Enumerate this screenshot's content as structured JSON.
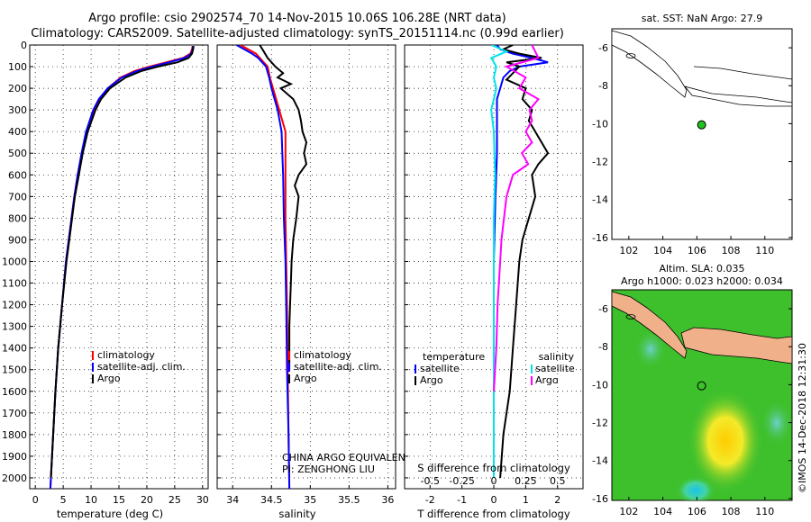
{
  "title_line1": "Argo profile: csio 2902574_70 14-Nov-2015 10.06S 106.28E (NRT data)",
  "title_line2": "Climatology: CARS2009. Satellite-adjusted climatology: synTS_20151114.nc (0.99d earlier)",
  "colors": {
    "climatology": "#ff0000",
    "satellite": "#0000ff",
    "argo": "#000000",
    "sat_salinity": "#00e5ee",
    "argo_salinity": "#ff00ff",
    "land": "#f0b08a"
  },
  "chart_data": [
    {
      "type": "line",
      "id": "temperature",
      "xlabel": "temperature (deg C)",
      "xlim": [
        -1,
        31
      ],
      "ylim": [
        0,
        2050
      ],
      "xticks": [
        0,
        5,
        10,
        15,
        20,
        25,
        30
      ],
      "yticks": [
        0,
        100,
        200,
        300,
        400,
        500,
        600,
        700,
        800,
        900,
        1000,
        1100,
        1200,
        1300,
        1400,
        1500,
        1600,
        1700,
        1800,
        1900,
        2000
      ],
      "legend": [
        "climatology",
        "satellite-adj. clim.",
        "Argo"
      ],
      "series": [
        {
          "name": "climatology",
          "depth": [
            5,
            20,
            40,
            60,
            80,
            100,
            120,
            150,
            200,
            250,
            300,
            400,
            500,
            600,
            700,
            800,
            1000,
            1200,
            1400,
            1600,
            1800,
            2000,
            2050
          ],
          "values": [
            28.2,
            28.1,
            27.8,
            26.5,
            23.5,
            20.5,
            17.8,
            15.3,
            13.0,
            11.5,
            10.5,
            9.2,
            8.4,
            7.6,
            7.0,
            6.5,
            5.5,
            4.8,
            4.1,
            3.6,
            3.2,
            2.8,
            2.7
          ]
        },
        {
          "name": "satellite-adj. clim.",
          "depth": [
            5,
            20,
            40,
            60,
            80,
            100,
            120,
            150,
            200,
            250,
            300,
            400,
            500,
            600,
            700,
            800,
            1000,
            1200,
            1400,
            1600,
            1800,
            2000,
            2050
          ],
          "values": [
            28.3,
            28.2,
            28.0,
            26.8,
            24.0,
            21.0,
            18.2,
            15.5,
            13.0,
            11.4,
            10.4,
            9.1,
            8.3,
            7.6,
            7.0,
            6.5,
            5.5,
            4.8,
            4.1,
            3.6,
            3.2,
            2.8,
            2.7
          ]
        },
        {
          "name": "Argo",
          "depth": [
            5,
            20,
            40,
            60,
            80,
            100,
            120,
            150,
            200,
            250,
            300,
            400,
            500,
            600,
            700,
            800,
            1000,
            1200,
            1400,
            1600,
            1800,
            2000
          ],
          "values": [
            28.4,
            28.3,
            28.1,
            27.5,
            25.5,
            22.0,
            19.0,
            16.2,
            13.4,
            11.8,
            10.8,
            9.4,
            8.5,
            7.8,
            7.1,
            6.6,
            5.6,
            4.8,
            4.1,
            3.6,
            3.2,
            2.8
          ]
        }
      ]
    },
    {
      "type": "line",
      "id": "salinity",
      "xlabel": "salinity",
      "xlim": [
        33.8,
        36.1
      ],
      "ylim": [
        0,
        2050
      ],
      "xticks": [
        34,
        34.5,
        35,
        35.5,
        36
      ],
      "legend": [
        "climatology",
        "satellite-adj. clim.",
        "Argo"
      ],
      "annotation": [
        "CHINA ARGO EQUIVALENT",
        "PI: ZENGHONG LIU"
      ],
      "series": [
        {
          "name": "climatology",
          "depth": [
            0,
            20,
            40,
            60,
            100,
            150,
            200,
            300,
            400,
            500,
            600,
            800,
            1000,
            1200,
            1500,
            1800,
            2050
          ],
          "values": [
            34.1,
            34.2,
            34.3,
            34.35,
            34.45,
            34.48,
            34.52,
            34.6,
            34.68,
            34.68,
            34.68,
            34.68,
            34.69,
            34.7,
            34.71,
            34.72,
            34.73
          ]
        },
        {
          "name": "satellite-adj. clim.",
          "depth": [
            0,
            20,
            40,
            60,
            100,
            150,
            200,
            300,
            400,
            500,
            600,
            800,
            1000,
            1200,
            1500,
            1800,
            2050
          ],
          "values": [
            34.05,
            34.15,
            34.25,
            34.33,
            34.43,
            34.47,
            34.5,
            34.58,
            34.63,
            34.64,
            34.65,
            34.66,
            34.68,
            34.69,
            34.7,
            34.72,
            34.73
          ]
        },
        {
          "name": "Argo",
          "depth": [
            0,
            30,
            60,
            100,
            130,
            150,
            180,
            200,
            250,
            300,
            350,
            400,
            450,
            500,
            550,
            600,
            650,
            700,
            800,
            900,
            1000,
            1100,
            1200,
            1300,
            1400,
            1500
          ],
          "values": [
            34.35,
            34.4,
            34.45,
            34.55,
            34.65,
            34.58,
            34.75,
            34.62,
            34.78,
            34.85,
            34.88,
            34.9,
            34.95,
            34.92,
            34.95,
            34.85,
            34.8,
            34.85,
            34.82,
            34.78,
            34.76,
            34.75,
            34.74,
            34.73,
            34.73,
            34.73
          ]
        }
      ]
    },
    {
      "type": "line",
      "id": "difference",
      "xlabel": "T difference from climatology",
      "xlabel2": "S difference from climatology",
      "xlim": [
        -2.8,
        2.8
      ],
      "ylim": [
        0,
        2050
      ],
      "xticks": [
        -2,
        -1,
        0,
        1,
        2
      ],
      "xticks2": [
        "-0.5",
        "-0.25",
        "0",
        "0.25",
        "0.5"
      ],
      "legend_temperature": [
        "temperature",
        "satellite",
        "Argo"
      ],
      "legend_salinity": [
        "salinity",
        "satellite",
        "Argo"
      ],
      "series": [
        {
          "name": "T satellite",
          "depth": [
            0,
            20,
            40,
            60,
            80,
            100,
            120,
            150,
            200,
            250,
            300,
            400,
            500,
            700,
            1000,
            1500,
            2000
          ],
          "values": [
            0.1,
            0.2,
            0.6,
            1.2,
            1.7,
            0.8,
            0.5,
            0.3,
            0.2,
            0.1,
            0.1,
            0.1,
            0.1,
            0.05,
            0.0,
            0.0,
            0.0
          ]
        },
        {
          "name": "T Argo",
          "depth": [
            0,
            20,
            40,
            60,
            80,
            100,
            130,
            160,
            200,
            250,
            300,
            350,
            400,
            500,
            550,
            600,
            700,
            800,
            900,
            1000,
            1200,
            1400,
            1600,
            1800,
            2000
          ],
          "values": [
            0.6,
            0.3,
            0.8,
            1.5,
            0.4,
            0.8,
            0.6,
            0.4,
            1.0,
            0.9,
            1.2,
            1.1,
            1.3,
            1.7,
            1.4,
            1.2,
            1.3,
            1.1,
            0.9,
            0.8,
            0.7,
            0.6,
            0.5,
            0.3,
            0.2
          ]
        },
        {
          "name": "S satellite",
          "depth": [
            0,
            30,
            60,
            100,
            150,
            200,
            300,
            400,
            600,
            800,
            1000,
            1500,
            2000
          ],
          "values": [
            -0.02,
            0.1,
            -0.02,
            0.02,
            0.0,
            0.02,
            -0.02,
            0.0,
            0.01,
            0.0,
            0.0,
            0.0,
            0.0
          ]
        },
        {
          "name": "S Argo",
          "depth": [
            0,
            60,
            100,
            150,
            200,
            250,
            300,
            350,
            400,
            450,
            500,
            550,
            600,
            700,
            800,
            900,
            1000,
            1200,
            1400,
            1600
          ],
          "values": [
            0.3,
            0.35,
            0.1,
            0.25,
            0.2,
            0.35,
            0.28,
            0.3,
            0.25,
            0.3,
            0.22,
            0.27,
            0.15,
            0.1,
            0.08,
            0.06,
            0.05,
            0.03,
            0.02,
            0.0
          ]
        }
      ]
    },
    {
      "type": "map",
      "id": "sst",
      "title": "sat. SST: NaN Argo: 27.9",
      "xticks": [
        102,
        104,
        106,
        108,
        110
      ],
      "yticks": [
        -6,
        -8,
        -10,
        -12,
        -14,
        -16
      ],
      "marker": {
        "lon": 106.28,
        "lat": -10.06
      }
    },
    {
      "type": "map",
      "id": "sla",
      "title_line1": "Altim. SLA: 0.035",
      "title_line2": "Argo h1000: 0.023 h2000: 0.034",
      "xticks": [
        102,
        104,
        106,
        108,
        110
      ],
      "yticks": [
        -6,
        -8,
        -10,
        -12,
        -14,
        -16
      ],
      "marker": {
        "lon": 106.28,
        "lat": -10.06
      }
    }
  ],
  "watermark": "©IMOS 14-Dec-2018 12:31:30"
}
